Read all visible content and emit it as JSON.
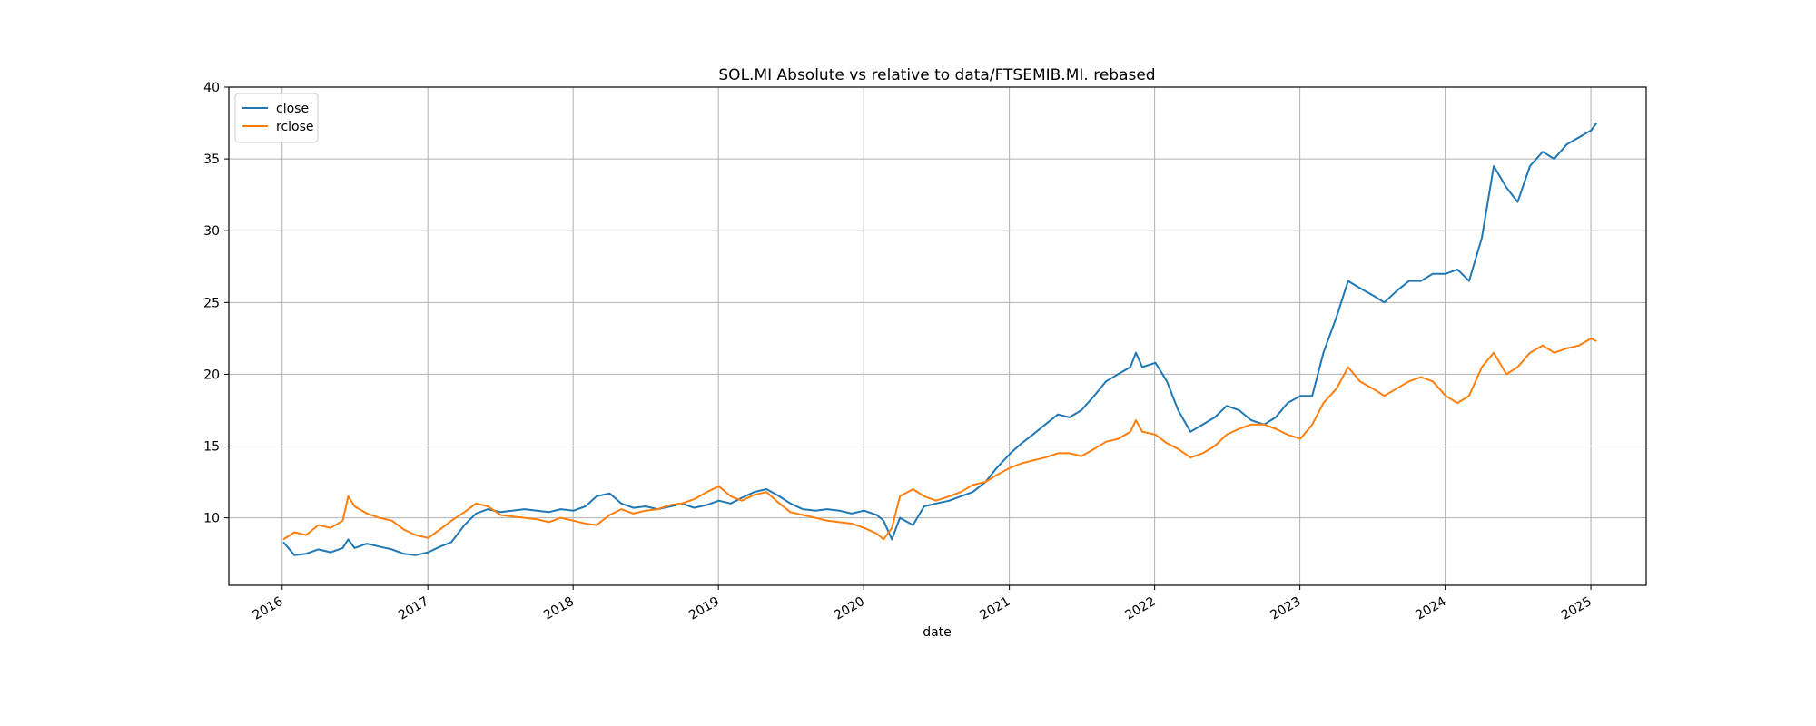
{
  "chart_data": {
    "type": "line",
    "title": "SOL.MI Absolute vs relative to data/FTSEMIB.MI. rebased",
    "xlabel": "date",
    "ylabel": "",
    "xlim": [
      "2015-08-20",
      "2025-05-20"
    ],
    "ylim": [
      5.3,
      40
    ],
    "x_ticks": [
      "2016",
      "2017",
      "2018",
      "2019",
      "2020",
      "2021",
      "2022",
      "2023",
      "2024",
      "2025"
    ],
    "y_ticks": [
      10,
      15,
      20,
      25,
      30,
      35,
      40
    ],
    "grid": true,
    "legend_position": "top-left",
    "x": [
      "2016-01-04",
      "2016-02-01",
      "2016-03-01",
      "2016-04-01",
      "2016-05-02",
      "2016-06-01",
      "2016-06-15",
      "2016-07-01",
      "2016-08-01",
      "2016-09-01",
      "2016-10-03",
      "2016-11-01",
      "2016-12-01",
      "2017-01-02",
      "2017-02-01",
      "2017-03-01",
      "2017-04-03",
      "2017-05-02",
      "2017-06-01",
      "2017-07-03",
      "2017-08-01",
      "2017-09-01",
      "2017-10-02",
      "2017-11-01",
      "2017-12-01",
      "2018-01-02",
      "2018-02-01",
      "2018-03-01",
      "2018-04-03",
      "2018-05-02",
      "2018-06-01",
      "2018-07-02",
      "2018-08-01",
      "2018-09-03",
      "2018-10-01",
      "2018-11-01",
      "2018-12-03",
      "2019-01-02",
      "2019-02-01",
      "2019-03-01",
      "2019-04-01",
      "2019-05-02",
      "2019-06-03",
      "2019-07-01",
      "2019-08-01",
      "2019-09-02",
      "2019-10-01",
      "2019-11-01",
      "2019-12-02",
      "2020-01-02",
      "2020-02-03",
      "2020-02-20",
      "2020-03-12",
      "2020-04-01",
      "2020-05-04",
      "2020-06-01",
      "2020-07-01",
      "2020-08-03",
      "2020-09-01",
      "2020-10-01",
      "2020-11-02",
      "2020-12-01",
      "2021-01-04",
      "2021-02-01",
      "2021-03-01",
      "2021-04-01",
      "2021-05-03",
      "2021-06-01",
      "2021-07-01",
      "2021-08-02",
      "2021-09-01",
      "2021-10-01",
      "2021-11-01",
      "2021-11-15",
      "2021-12-01",
      "2022-01-03",
      "2022-02-01",
      "2022-03-01",
      "2022-04-01",
      "2022-05-02",
      "2022-06-01",
      "2022-07-01",
      "2022-08-01",
      "2022-09-01",
      "2022-10-03",
      "2022-11-01",
      "2022-12-01",
      "2023-01-02",
      "2023-02-01",
      "2023-03-01",
      "2023-04-03",
      "2023-05-02",
      "2023-06-01",
      "2023-07-03",
      "2023-08-01",
      "2023-09-01",
      "2023-10-02",
      "2023-11-01",
      "2023-12-01",
      "2024-01-02",
      "2024-02-01",
      "2024-03-01",
      "2024-04-02",
      "2024-05-02",
      "2024-06-03",
      "2024-07-01",
      "2024-08-01",
      "2024-09-02",
      "2024-10-01",
      "2024-11-01",
      "2024-12-02",
      "2025-01-02",
      "2025-01-15"
    ],
    "series": [
      {
        "name": "close",
        "color": "#1f77b4",
        "values": [
          8.3,
          7.4,
          7.5,
          7.8,
          7.6,
          7.9,
          8.5,
          7.9,
          8.2,
          8.0,
          7.8,
          7.5,
          7.4,
          7.6,
          8.0,
          8.3,
          9.5,
          10.3,
          10.6,
          10.4,
          10.5,
          10.6,
          10.5,
          10.4,
          10.6,
          10.5,
          10.8,
          11.5,
          11.7,
          11.0,
          10.7,
          10.8,
          10.6,
          10.8,
          11.0,
          10.7,
          10.9,
          11.2,
          11.0,
          11.4,
          11.8,
          12.0,
          11.5,
          11.0,
          10.6,
          10.5,
          10.6,
          10.5,
          10.3,
          10.5,
          10.2,
          9.8,
          8.5,
          10.0,
          9.5,
          10.8,
          11.0,
          11.2,
          11.5,
          11.8,
          12.5,
          13.5,
          14.5,
          15.2,
          15.8,
          16.5,
          17.2,
          17.0,
          17.5,
          18.5,
          19.5,
          20.0,
          20.5,
          21.5,
          20.5,
          20.8,
          19.5,
          17.5,
          16.0,
          16.5,
          17.0,
          17.8,
          17.5,
          16.8,
          16.5,
          17.0,
          18.0,
          18.5,
          18.5,
          21.5,
          24.0,
          26.5,
          26.0,
          25.5,
          25.0,
          25.8,
          26.5,
          26.5,
          27.0,
          27.0,
          27.3,
          26.5,
          29.5,
          34.5,
          33.0,
          32.0,
          34.5,
          35.5,
          35.0,
          36.0,
          36.5,
          37.0,
          37.5
        ]
      },
      {
        "name": "rclose",
        "color": "#ff7f0e",
        "values": [
          8.5,
          9.0,
          8.8,
          9.5,
          9.3,
          9.8,
          11.5,
          10.8,
          10.3,
          10.0,
          9.8,
          9.2,
          8.8,
          8.6,
          9.2,
          9.8,
          10.4,
          11.0,
          10.8,
          10.2,
          10.1,
          10.0,
          9.9,
          9.7,
          10.0,
          9.8,
          9.6,
          9.5,
          10.2,
          10.6,
          10.3,
          10.5,
          10.6,
          10.9,
          11.0,
          11.3,
          11.8,
          12.2,
          11.5,
          11.2,
          11.6,
          11.8,
          11.0,
          10.4,
          10.2,
          10.0,
          9.8,
          9.7,
          9.6,
          9.3,
          8.9,
          8.5,
          9.3,
          11.5,
          12.0,
          11.5,
          11.2,
          11.5,
          11.8,
          12.3,
          12.5,
          13.0,
          13.5,
          13.8,
          14.0,
          14.2,
          14.5,
          14.5,
          14.3,
          14.8,
          15.3,
          15.5,
          16.0,
          16.8,
          16.0,
          15.8,
          15.2,
          14.8,
          14.2,
          14.5,
          15.0,
          15.8,
          16.2,
          16.5,
          16.5,
          16.2,
          15.8,
          15.5,
          16.5,
          18.0,
          19.0,
          20.5,
          19.5,
          19.0,
          18.5,
          19.0,
          19.5,
          19.8,
          19.5,
          18.5,
          18.0,
          18.5,
          20.5,
          21.5,
          20.0,
          20.5,
          21.5,
          22.0,
          21.5,
          21.8,
          22.0,
          22.5,
          22.3
        ]
      }
    ]
  }
}
